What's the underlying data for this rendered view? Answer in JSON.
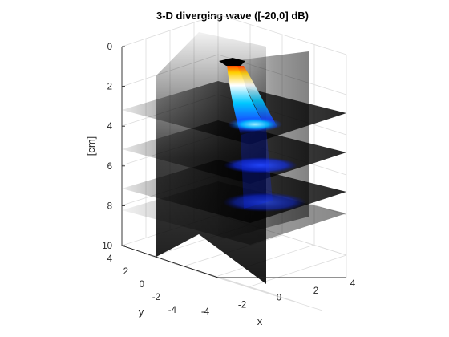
{
  "chart_data": {
    "type": "volume-slices",
    "title": "3-D diverging wave ([-20,0] dB)",
    "xlabel": "x",
    "ylabel": "y",
    "zlabel": "[cm]",
    "x_ticks": [
      -4,
      -2,
      0,
      2,
      4
    ],
    "y_ticks": [
      -4,
      -2,
      0,
      2,
      4
    ],
    "z_ticks": [
      0,
      2,
      4,
      6,
      8,
      10
    ],
    "xlim": [
      -4,
      4
    ],
    "ylim": [
      -4,
      4
    ],
    "zlim": [
      0,
      10
    ],
    "z_reversed": true,
    "grid": true,
    "colormap": "hot-cold",
    "clim_db": [
      -20,
      0
    ],
    "horizontal_slices_z": [
      3,
      5,
      7,
      8.3
    ],
    "vertical_slices": [
      {
        "plane": "x",
        "value": 0
      }
    ],
    "probe_at_z": 0,
    "colors": {
      "axis": "#262626",
      "grid": "#dcdcdc",
      "slice_shade": "#000000",
      "peak": "#ff3300",
      "mid": "#ffffff",
      "cool": "#00c8ff",
      "low": "#0a28ff"
    }
  }
}
